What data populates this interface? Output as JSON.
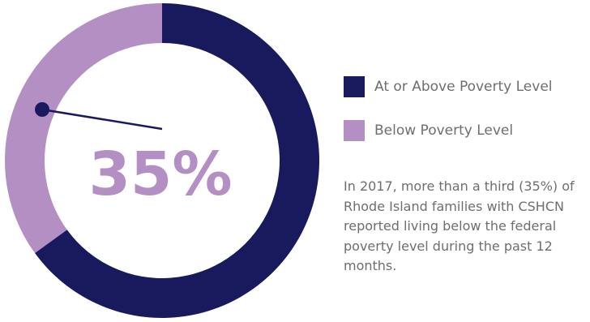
{
  "colors": {
    "above": "#191a5e",
    "below": "#b38fc4",
    "text": "#6d6e71"
  },
  "chart_data": {
    "type": "pie",
    "style": "donut",
    "categories": [
      "At or Above Poverty Level",
      "Below Poverty Level"
    ],
    "values": [
      65,
      35
    ],
    "colors": [
      "#191a5e",
      "#b38fc4"
    ],
    "center_label": "35%",
    "legend_position": "right"
  },
  "legend": {
    "items": [
      {
        "label": "At or Above Poverty Level",
        "color": "#191a5e"
      },
      {
        "label": "Below Poverty Level",
        "color": "#b38fc4"
      }
    ]
  },
  "note": {
    "text": "In 2017, more than a third (35%) of Rhode Island families with CSHCN reported living below the federal poverty level during the past 12 months."
  }
}
